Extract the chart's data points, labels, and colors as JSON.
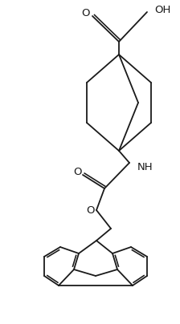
{
  "background_color": "#ffffff",
  "line_color": "#1a1a1a",
  "line_width": 1.3,
  "figsize": [
    2.24,
    4.04
  ],
  "dpi": 100,
  "xlim": [
    0,
    224
  ],
  "ylim": [
    0,
    404
  ]
}
